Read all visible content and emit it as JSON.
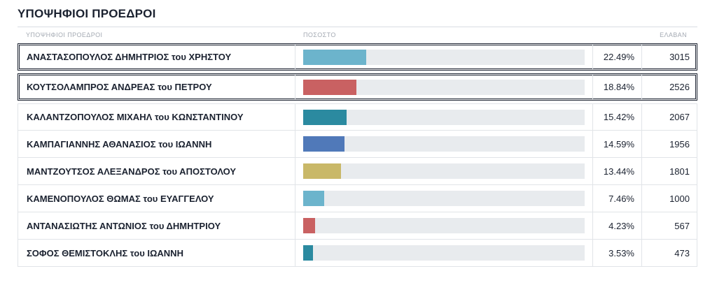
{
  "title": "ΥΠΟΨΗΦΙΟΙ ΠΡΟΕΔΡΟΙ",
  "headers": {
    "name": "ΥΠΟΨΗΦΙΟΙ ΠΡΟΕΔΡΟΙ",
    "percent": "ΠΟΣΟΣΤΟ",
    "votes": "ΕΛΑΒΑΝ"
  },
  "chart_data": {
    "type": "bar",
    "orientation": "horizontal",
    "xlim": [
      0,
      100
    ],
    "categories": [
      "ΑΝΑΣΤΑΣΟΠΟΥΛΟΣ ΔΗΜΗΤΡΙΟΣ του ΧΡΗΣΤΟΥ",
      "ΚΟΥΤΣΟΛΑΜΠΡΟΣ ΑΝΔΡΕΑΣ του ΠΕΤΡΟΥ",
      "ΚΑΛΑΝΤΖΟΠΟΥΛΟΣ ΜΙΧΑΗΛ του ΚΩΝΣΤΑΝΤΙΝΟΥ",
      "ΚΑΜΠΑΓΙΑΝΝΗΣ ΑΘΑΝΑΣΙΟΣ του ΙΩΑΝΝΗ",
      "ΜΑΝΤΖΟΥΤΣΟΣ ΑΛΕΞΑΝΔΡΟΣ του ΑΠΟΣΤΟΛΟΥ",
      "ΚΑΜΕΝΟΠΟΥΛΟΣ ΘΩΜΑΣ του ΕΥΑΓΓΕΛΟΥ",
      "ΑΝΤΑΝΑΣΙΩΤΗΣ ΑΝΤΩΝΙΟΣ του ΔΗΜΗΤΡΙΟΥ",
      "ΣΟΦΟΣ ΘΕΜΙΣΤΟΚΛΗΣ του ΙΩΑΝΝΗ"
    ],
    "values": [
      22.49,
      18.84,
      15.42,
      14.59,
      13.44,
      7.46,
      4.23,
      3.53
    ],
    "percent_labels": [
      "22.49%",
      "18.84%",
      "15.42%",
      "14.59%",
      "13.44%",
      "7.46%",
      "4.23%",
      "3.53%"
    ],
    "votes": [
      "3015",
      "2526",
      "2067",
      "1956",
      "1801",
      "1000",
      "567",
      "473"
    ],
    "colors": [
      "#6cb4cc",
      "#c96162",
      "#2b8aa0",
      "#5079b9",
      "#c9b868",
      "#6cb4cc",
      "#c96162",
      "#2b8aa0"
    ],
    "elected": [
      true,
      true,
      false,
      false,
      false,
      false,
      false,
      false
    ]
  }
}
